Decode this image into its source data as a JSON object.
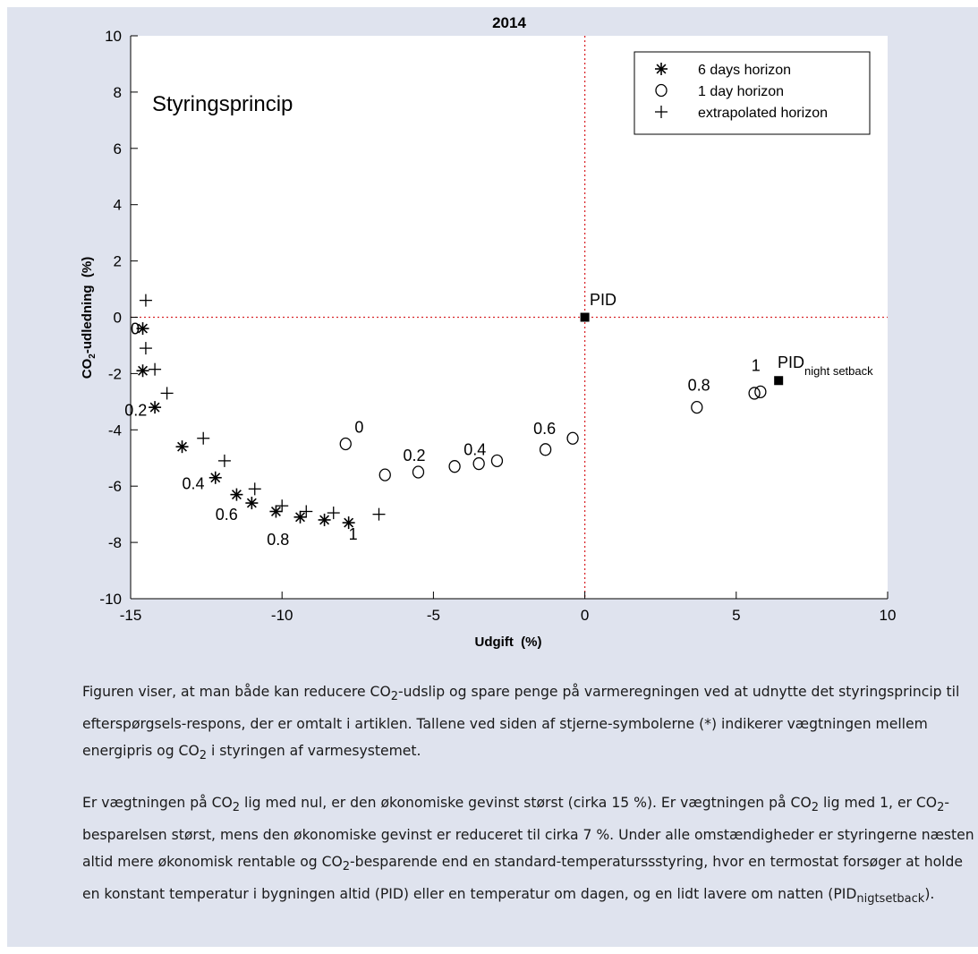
{
  "chart_data": {
    "type": "scatter",
    "title": "2014",
    "subtitle": "Styringsprincip",
    "xlabel": "Udgift  (%)",
    "ylabel_main": "CO",
    "ylabel_sub": "2",
    "ylabel_rest": "-udledning  (%)",
    "xlim": [
      -15,
      10
    ],
    "ylim": [
      -10,
      10
    ],
    "xticks": [
      -15,
      -10,
      -5,
      0,
      5,
      10
    ],
    "yticks": [
      -10,
      -8,
      -6,
      -4,
      -2,
      0,
      2,
      4,
      6,
      8,
      10
    ],
    "xtick_labels": [
      "-15",
      "-10",
      "-5",
      "0",
      "5",
      "10"
    ],
    "ytick_labels": [
      "-10",
      "-8",
      "-6",
      "-4",
      "-2",
      "0",
      "2",
      "4",
      "6",
      "8",
      "10"
    ],
    "reference_lines": {
      "x": 0,
      "y": 0,
      "color": "#d9262a",
      "style": "dotted"
    },
    "legend_position": "top-right",
    "series": [
      {
        "name": "6 days horizon",
        "marker": "asterisk",
        "points": [
          {
            "x": -14.6,
            "y": -0.4
          },
          {
            "x": -14.6,
            "y": -1.9
          },
          {
            "x": -14.2,
            "y": -3.2
          },
          {
            "x": -13.3,
            "y": -4.6
          },
          {
            "x": -12.2,
            "y": -5.7
          },
          {
            "x": -11.5,
            "y": -6.3
          },
          {
            "x": -11.0,
            "y": -6.6
          },
          {
            "x": -10.2,
            "y": -6.9
          },
          {
            "x": -9.4,
            "y": -7.1
          },
          {
            "x": -8.6,
            "y": -7.2
          },
          {
            "x": -7.8,
            "y": -7.3
          }
        ]
      },
      {
        "name": "1 day horizon",
        "marker": "circle",
        "points": [
          {
            "x": -7.9,
            "y": -4.5
          },
          {
            "x": -6.6,
            "y": -5.6
          },
          {
            "x": -5.5,
            "y": -5.5
          },
          {
            "x": -4.3,
            "y": -5.3
          },
          {
            "x": -3.5,
            "y": -5.2
          },
          {
            "x": -2.9,
            "y": -5.1
          },
          {
            "x": -1.3,
            "y": -4.7
          },
          {
            "x": -0.4,
            "y": -4.3
          },
          {
            "x": 3.7,
            "y": -3.2
          },
          {
            "x": 5.6,
            "y": -2.7
          },
          {
            "x": 5.8,
            "y": -2.65
          }
        ]
      },
      {
        "name": "extrapolated horizon",
        "marker": "plus",
        "points": [
          {
            "x": -14.5,
            "y": 0.6
          },
          {
            "x": -14.5,
            "y": -1.1
          },
          {
            "x": -14.2,
            "y": -1.85
          },
          {
            "x": -13.8,
            "y": -2.7
          },
          {
            "x": -12.6,
            "y": -4.3
          },
          {
            "x": -11.9,
            "y": -5.1
          },
          {
            "x": -10.9,
            "y": -6.1
          },
          {
            "x": -10.0,
            "y": -6.7
          },
          {
            "x": -9.2,
            "y": -6.9
          },
          {
            "x": -8.3,
            "y": -6.95
          },
          {
            "x": -6.8,
            "y": -7.0
          }
        ]
      },
      {
        "name": "PID",
        "marker": "square",
        "points": [
          {
            "x": 0,
            "y": 0
          },
          {
            "x": 6.4,
            "y": -2.25
          }
        ]
      }
    ],
    "legend_entries": [
      {
        "label": "6 days horizon",
        "marker": "asterisk"
      },
      {
        "label": "1 day horizon",
        "marker": "circle"
      },
      {
        "label": "extrapolated horizon",
        "marker": "plus"
      }
    ],
    "annotations": [
      {
        "text": "0",
        "x": -15.0,
        "y": -0.6
      },
      {
        "text": "0.2",
        "x": -15.2,
        "y": -3.5
      },
      {
        "text": "0.4",
        "x": -13.3,
        "y": -6.1
      },
      {
        "text": "0.6",
        "x": -12.2,
        "y": -7.2
      },
      {
        "text": "0.8",
        "x": -10.5,
        "y": -8.1
      },
      {
        "text": "1",
        "x": -7.8,
        "y": -7.9
      },
      {
        "text": "0",
        "x": -7.6,
        "y": -4.1
      },
      {
        "text": "0.2",
        "x": -6.0,
        "y": -5.1
      },
      {
        "text": "0.4",
        "x": -4.0,
        "y": -4.9
      },
      {
        "text": "0.6",
        "x": -1.7,
        "y": -4.15
      },
      {
        "text": "0.8",
        "x": 3.4,
        "y": -2.6
      },
      {
        "text": "1",
        "x": 5.5,
        "y": -1.9
      }
    ],
    "pid_label": "PID",
    "pid_night_main": "PID",
    "pid_night_sub": "night setback"
  },
  "caption": {
    "p1": [
      "Figuren viser, at man både kan reducere CO",
      "2",
      "-udslip og spare penge på varmeregningen ved at udnytte det styringsprincip til efterspørgsels-respons, der er omtalt i artiklen. Tallene ved siden af stjerne-symbolerne (*) indikerer vægtningen mellem energipris og CO",
      "2",
      " i styringen af varmesystemet."
    ],
    "p2": [
      "Er vægtningen på CO",
      "2",
      " lig med nul, er den økonomiske gevinst størst (cirka 15 %). Er vægtningen på CO",
      "2",
      " lig med 1, er CO",
      "2",
      "-besparelsen størst, mens den økonomiske gevinst er reduceret til cirka 7 %. Under alle omstændigheder er styringerne næsten altid mere økonomisk rentable og CO",
      "2",
      "-besparende end en standard-temperaturssstyring, hvor en termostat forsøger at holde en konstant temperatur i bygningen altid (PID) eller en temperatur om dagen, og en lidt lavere om natten (PID",
      "nigtsetback",
      ")."
    ]
  }
}
